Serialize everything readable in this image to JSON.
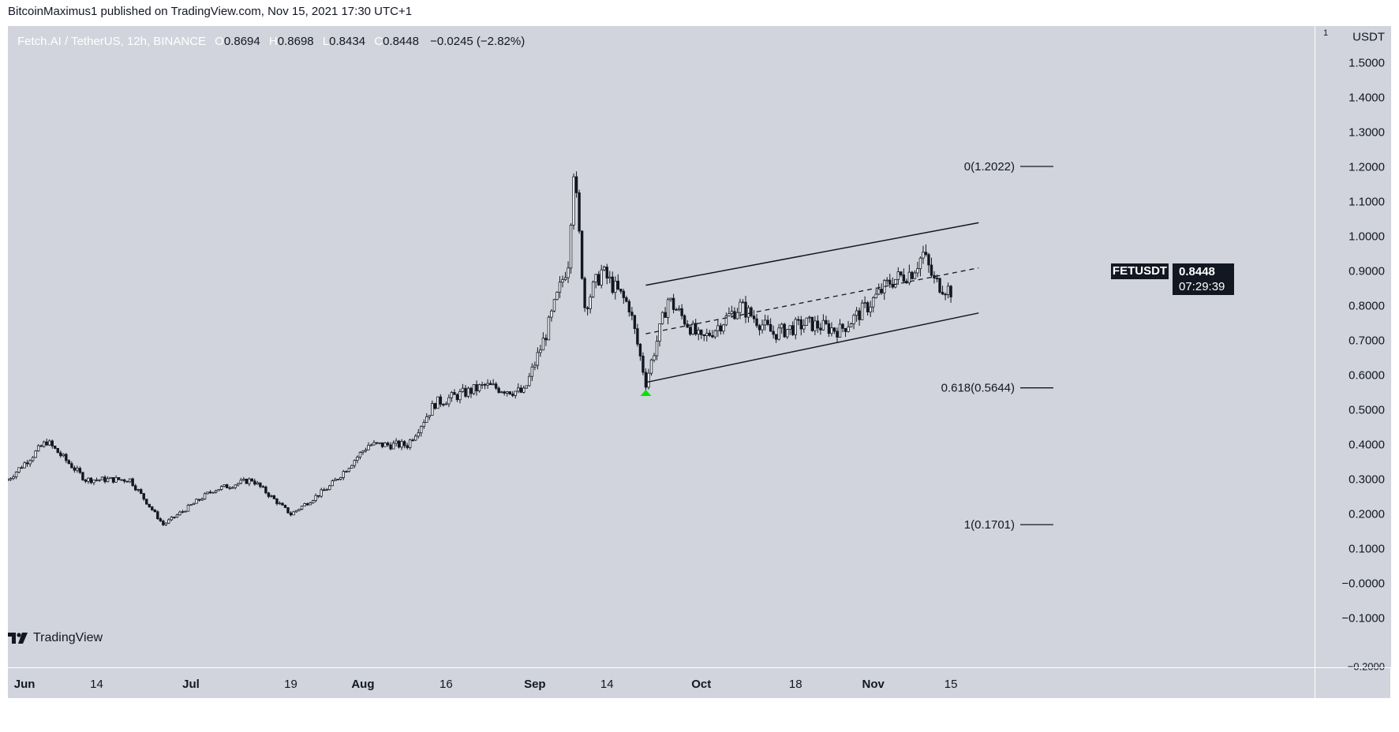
{
  "publish_line": "BitcoinMaximus1 published on TradingView.com, Nov 15, 2021 17:30 UTC+1",
  "header": {
    "symbol": "Fetch.AI / TetherUS, 12h, BINANCE",
    "o_key": "O",
    "o": "0.8694",
    "h_key": "H",
    "h": "0.8698",
    "l_key": "L",
    "l": "0.8434",
    "c_key": "C",
    "c": "0.8448",
    "change": "−0.0245 (−2.82%)"
  },
  "price_axis": {
    "currency": "USDT",
    "top_partial": "1",
    "ticks": [
      "1.5000",
      "1.4000",
      "1.3000",
      "1.2000",
      "1.1000",
      "1.0000",
      "0.9000",
      "0.8000",
      "0.7000",
      "0.6000",
      "0.5000",
      "0.4000",
      "0.3000",
      "0.2000",
      "0.1000",
      "−0.0000",
      "−0.1000"
    ],
    "bottom_partial": "−0.2000"
  },
  "time_axis": {
    "labels": [
      {
        "text": "Jun",
        "major": true
      },
      {
        "text": "14",
        "major": false
      },
      {
        "text": "Jul",
        "major": true
      },
      {
        "text": "19",
        "major": false
      },
      {
        "text": "Aug",
        "major": true
      },
      {
        "text": "16",
        "major": false
      },
      {
        "text": "Sep",
        "major": true
      },
      {
        "text": "14",
        "major": false
      },
      {
        "text": "Oct",
        "major": true
      },
      {
        "text": "18",
        "major": false
      },
      {
        "text": "Nov",
        "major": true
      },
      {
        "text": "15",
        "major": false
      }
    ]
  },
  "last_price": {
    "symbol": "FETUSDT",
    "price": "0.8448",
    "countdown": "07:29:39"
  },
  "fib": [
    {
      "label": "0(1.2022)",
      "value": 1.2022
    },
    {
      "label": "0.618(0.5644)",
      "value": 0.5644
    },
    {
      "label": "1(0.1701)",
      "value": 0.1701
    }
  ],
  "footer_brand": "TradingView",
  "colors": {
    "background": "#d1d4dc",
    "candle": "#131722",
    "marker": "#00e600",
    "badge": "#131722"
  },
  "chart_data": {
    "type": "candlestick",
    "title": "Fetch.AI / TetherUS, 12h, BINANCE",
    "ylabel": "USDT",
    "ylim": [
      -0.2,
      1.5
    ],
    "timeframe": "12h",
    "x_range": [
      "2021-05-29",
      "2021-11-15"
    ],
    "close_path": [
      [
        "2021-05-29",
        0.3
      ],
      [
        "2021-06-05",
        0.41
      ],
      [
        "2021-06-12",
        0.3
      ],
      [
        "2021-06-20",
        0.3
      ],
      [
        "2021-06-26",
        0.17
      ],
      [
        "2021-07-05",
        0.27
      ],
      [
        "2021-07-12",
        0.3
      ],
      [
        "2021-07-19",
        0.2
      ],
      [
        "2021-07-26",
        0.28
      ],
      [
        "2021-08-02",
        0.4
      ],
      [
        "2021-08-09",
        0.4
      ],
      [
        "2021-08-14",
        0.52
      ],
      [
        "2021-08-23",
        0.57
      ],
      [
        "2021-08-30",
        0.55
      ],
      [
        "2021-09-03",
        0.72
      ],
      [
        "2021-09-07",
        0.93
      ],
      [
        "2021-09-08",
        1.2
      ],
      [
        "2021-09-10",
        0.8
      ],
      [
        "2021-09-13",
        0.9
      ],
      [
        "2021-09-18",
        0.8
      ],
      [
        "2021-09-21",
        0.58
      ],
      [
        "2021-09-25",
        0.82
      ],
      [
        "2021-10-01",
        0.7
      ],
      [
        "2021-10-08",
        0.8
      ],
      [
        "2021-10-14",
        0.72
      ],
      [
        "2021-10-20",
        0.75
      ],
      [
        "2021-10-26",
        0.73
      ],
      [
        "2021-10-31",
        0.8
      ],
      [
        "2021-11-04",
        0.87
      ],
      [
        "2021-11-08",
        0.9
      ],
      [
        "2021-11-10",
        0.95
      ],
      [
        "2021-11-12",
        0.87
      ],
      [
        "2021-11-15",
        0.8448
      ]
    ],
    "period_high": 1.2,
    "period_low": 0.17,
    "last": {
      "open": 0.8694,
      "high": 0.8698,
      "low": 0.8434,
      "close": 0.8448,
      "change": -0.0245,
      "change_pct": -2.82
    },
    "channel": {
      "type": "ascending parallel channel",
      "start": "2021-09-21",
      "end": "2021-11-20",
      "upper": [
        0.86,
        1.04
      ],
      "lower": [
        0.58,
        0.78
      ],
      "midline": "dashed"
    },
    "fib_levels": [
      {
        "ratio": 0,
        "value": 1.2022
      },
      {
        "ratio": 0.618,
        "value": 0.5644
      },
      {
        "ratio": 1,
        "value": 0.1701
      }
    ],
    "annotations": [
      {
        "type": "green-up-arrow",
        "date": "2021-09-21",
        "value": 0.55
      }
    ]
  }
}
